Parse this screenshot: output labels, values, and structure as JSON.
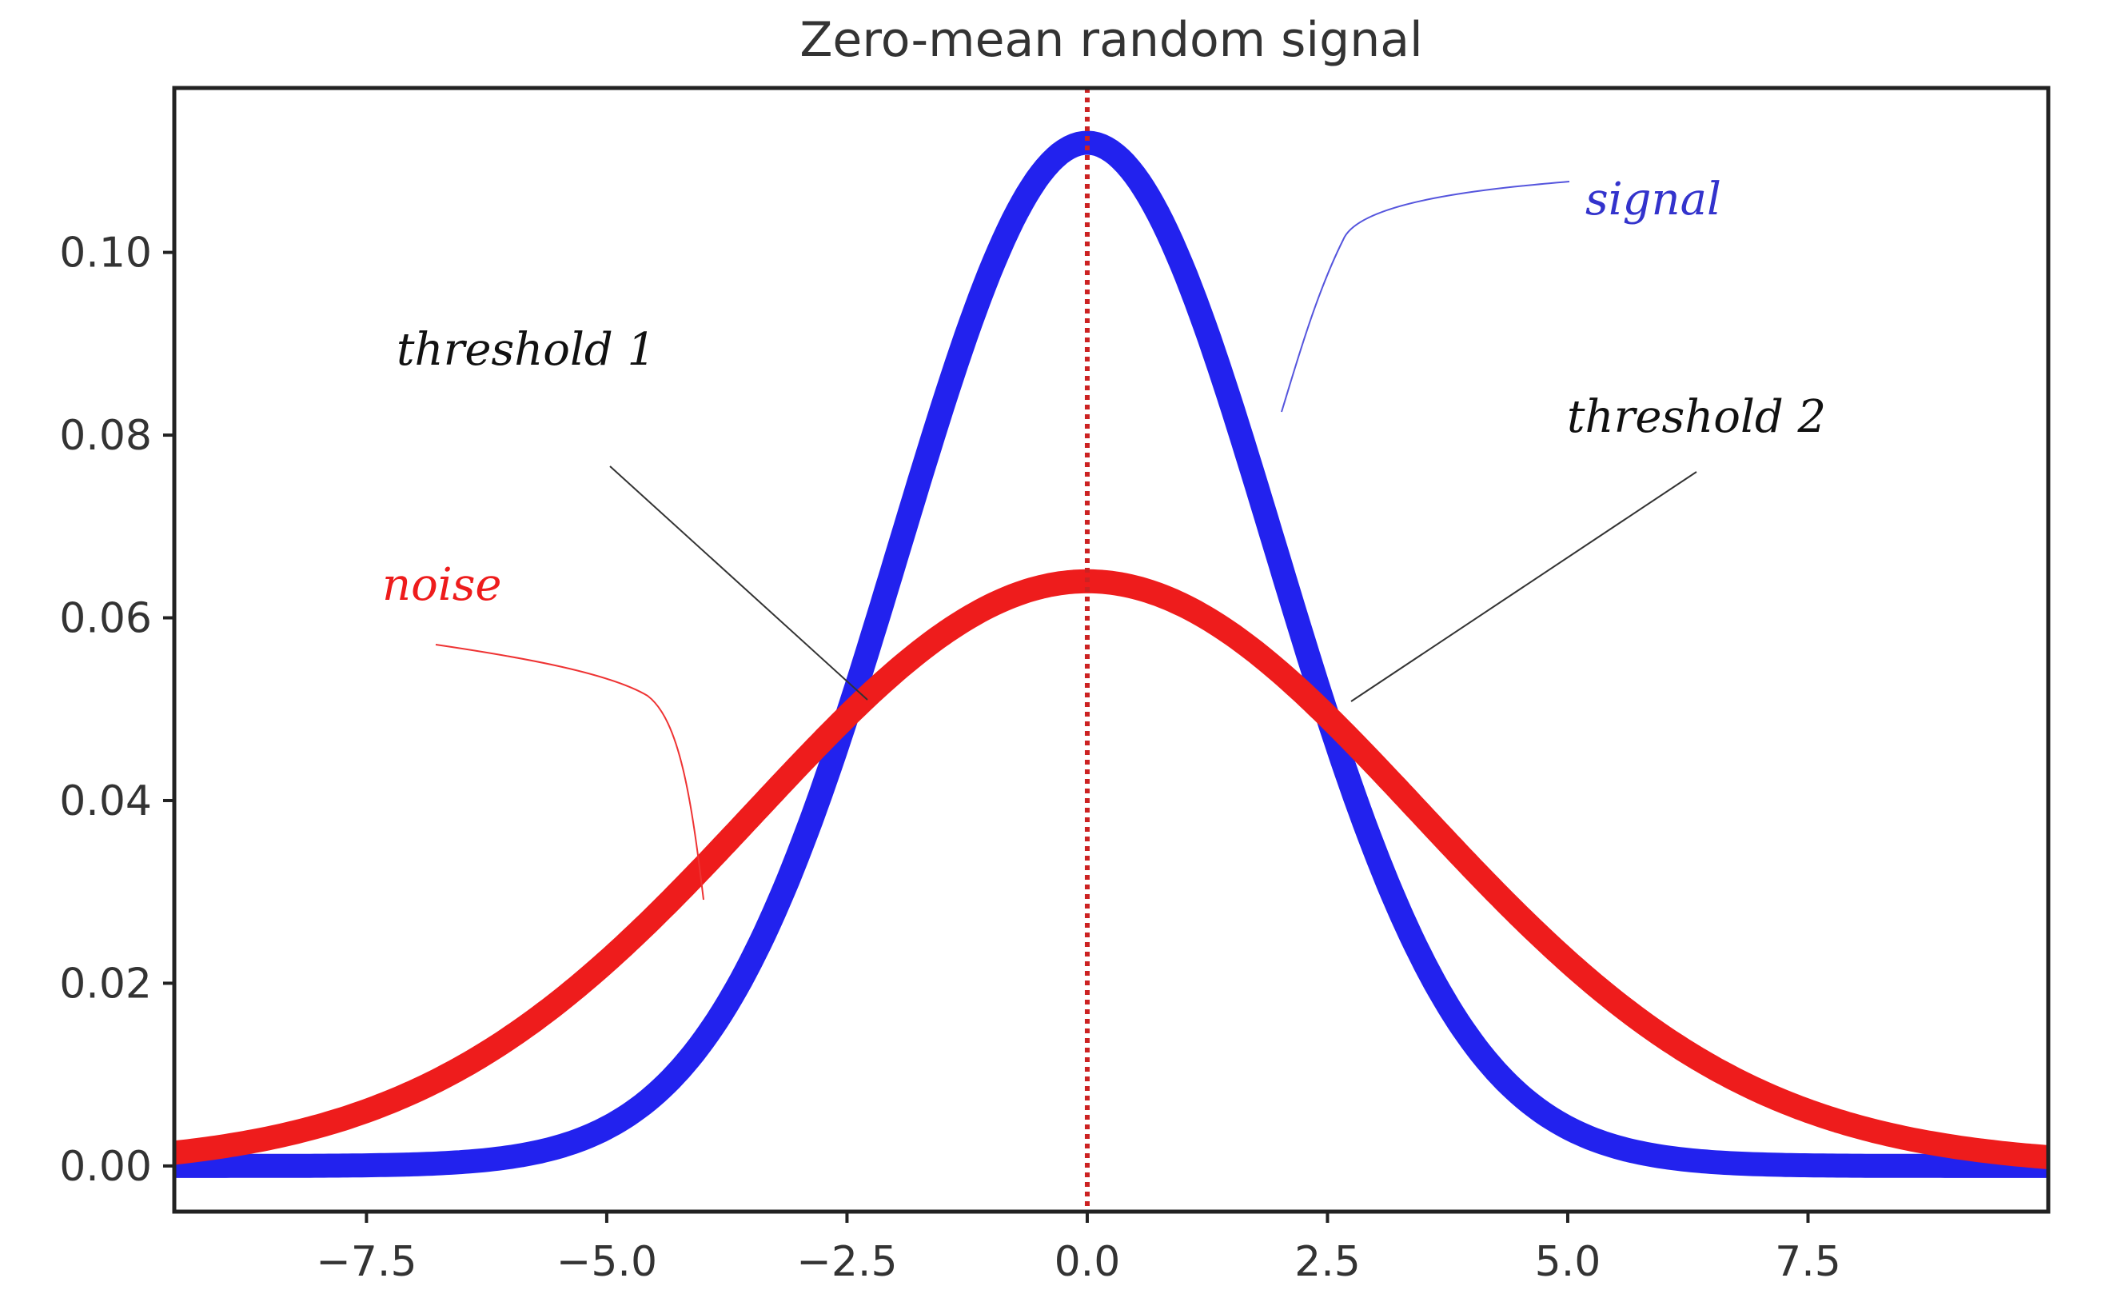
{
  "chart_data": {
    "type": "line",
    "title": "Zero-mean random signal",
    "xlabel": "",
    "ylabel": "",
    "xlim": [
      -9.5,
      10.0
    ],
    "ylim": [
      -0.005,
      0.118
    ],
    "x_ticks": [
      -7.5,
      -5.0,
      -2.5,
      0.0,
      2.5,
      5.0,
      7.5
    ],
    "x_tick_labels": [
      "−7.5",
      "−5.0",
      "−2.5",
      "0.0",
      "2.5",
      "5.0",
      "7.5"
    ],
    "y_ticks": [
      0.0,
      0.02,
      0.04,
      0.06,
      0.08,
      0.1
    ],
    "y_tick_labels": [
      "0.00",
      "0.02",
      "0.04",
      "0.06",
      "0.08",
      "0.10"
    ],
    "grid": false,
    "series": [
      {
        "color": "#2222ee",
        "distribution": "normal",
        "mean": 0.0,
        "std": 1.95,
        "peak": 0.112
      },
      {
        "color": "#ee1c1c",
        "distribution": "normal",
        "mean": 0.0,
        "std": 3.45,
        "peak": 0.064
      }
    ],
    "reference_lines": [
      {
        "x": 0.0,
        "style": "dotted",
        "color": "#cc2222"
      }
    ],
    "annotations": [
      {
        "text": "signal",
        "color": "#3333cc",
        "points_to": [
          1.8,
          0.084
        ]
      },
      {
        "text": "threshold 1",
        "color": "#111111",
        "points_to": [
          -2.5,
          0.051
        ]
      },
      {
        "text": "threshold 2",
        "color": "#111111",
        "points_to": [
          2.5,
          0.051
        ]
      },
      {
        "text": "noise",
        "color": "#ee1c1c",
        "points_to": [
          -4.3,
          0.029
        ]
      }
    ]
  }
}
